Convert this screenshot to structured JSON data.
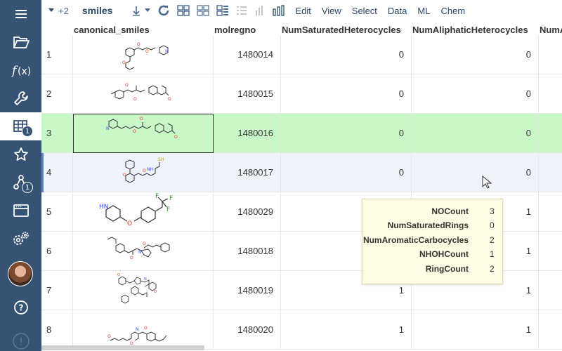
{
  "sidebar": {
    "items": [
      {
        "name": "menu-icon",
        "badge": ""
      },
      {
        "name": "folder-open-icon",
        "badge": ""
      },
      {
        "name": "function-icon",
        "badge": ""
      },
      {
        "name": "wrench-icon",
        "badge": ""
      },
      {
        "name": "table-icon",
        "badge": "1"
      },
      {
        "name": "star-icon",
        "badge": ""
      },
      {
        "name": "share-icon",
        "badge": "1"
      },
      {
        "name": "window-icon",
        "badge": ""
      },
      {
        "name": "settings-icon",
        "badge": ""
      },
      {
        "name": "help-icon",
        "badge": ""
      }
    ]
  },
  "toolbar": {
    "expand_label": "+2",
    "title": "smiles",
    "menu": [
      "Edit",
      "View",
      "Select",
      "Data",
      "ML",
      "Chem"
    ]
  },
  "grid": {
    "columns": [
      "canonical_smiles",
      "molregno",
      "NumSaturatedHeterocycles",
      "NumAliphaticHeterocycles",
      "NumA"
    ],
    "rows": [
      {
        "idx": "1",
        "molregno": "1480014",
        "sat": "0",
        "ali": "0",
        "extra": ""
      },
      {
        "idx": "2",
        "molregno": "1480015",
        "sat": "0",
        "ali": "0",
        "extra": ""
      },
      {
        "idx": "3",
        "molregno": "1480016",
        "sat": "0",
        "ali": "0",
        "extra": ""
      },
      {
        "idx": "4",
        "molregno": "1480017",
        "sat": "0",
        "ali": "0",
        "extra": ""
      },
      {
        "idx": "5",
        "molregno": "1480029",
        "sat": "",
        "ali": "1",
        "extra": ""
      },
      {
        "idx": "6",
        "molregno": "1480018",
        "sat": "",
        "ali": "1",
        "extra": ""
      },
      {
        "idx": "7",
        "molregno": "1480019",
        "sat": "1",
        "ali": "1",
        "extra": ""
      },
      {
        "idx": "8",
        "molregno": "1480020",
        "sat": "1",
        "ali": "1",
        "extra": ""
      }
    ]
  },
  "tooltip": {
    "rows": [
      {
        "key": "NOCount",
        "value": "3"
      },
      {
        "key": "NumSaturatedRings",
        "value": "0"
      },
      {
        "key": "NumAromaticCarbocycles",
        "value": "2"
      },
      {
        "key": "NHOHCount",
        "value": "1"
      },
      {
        "key": "RingCount",
        "value": "2"
      }
    ]
  },
  "colors": {
    "sidebar": "#365374",
    "current_row": "#c8f8c8",
    "hover_row": "#eef3f9",
    "tooltip_bg": "#fffde6"
  }
}
